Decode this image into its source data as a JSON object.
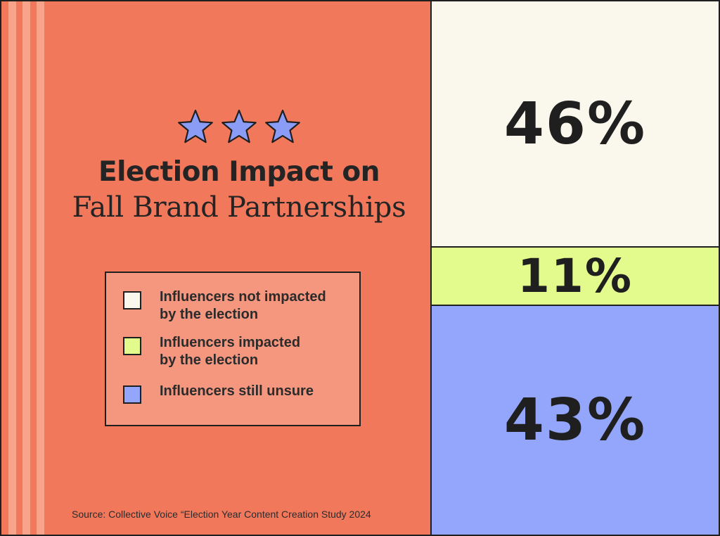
{
  "chart_data": {
    "type": "bar",
    "subtype": "stacked-100-percent",
    "title_line_1": "Election Impact on",
    "title_line_2": "Fall Brand Partnerships",
    "categories": [
      "Influencers not impacted by the election",
      "Influencers impacted by the election",
      "Influencers still unsure"
    ],
    "values": [
      46,
      11,
      43
    ],
    "value_labels": [
      "46%",
      "11%",
      "43%"
    ],
    "colors": [
      "#faf8ec",
      "#e3fa8d",
      "#94a6fc"
    ],
    "legend": [
      {
        "line1": "Influencers not impacted",
        "line2": "by the election",
        "color": "#faf8ec"
      },
      {
        "line1": "Influencers impacted",
        "line2": "by the election",
        "color": "#e3fa8d"
      },
      {
        "line1": "Influencers still unsure",
        "line2": "",
        "color": "#94a6fc"
      }
    ],
    "legend_placement": "left",
    "source": "Source: Collective Voice “Election Year Content Creation Study 2024"
  },
  "decoration": {
    "stars_icon": "star-icon",
    "star_count": 3,
    "star_color": "#8b9cf7",
    "background_color": "#f2785c",
    "stripe_color": "#f7a48a"
  }
}
